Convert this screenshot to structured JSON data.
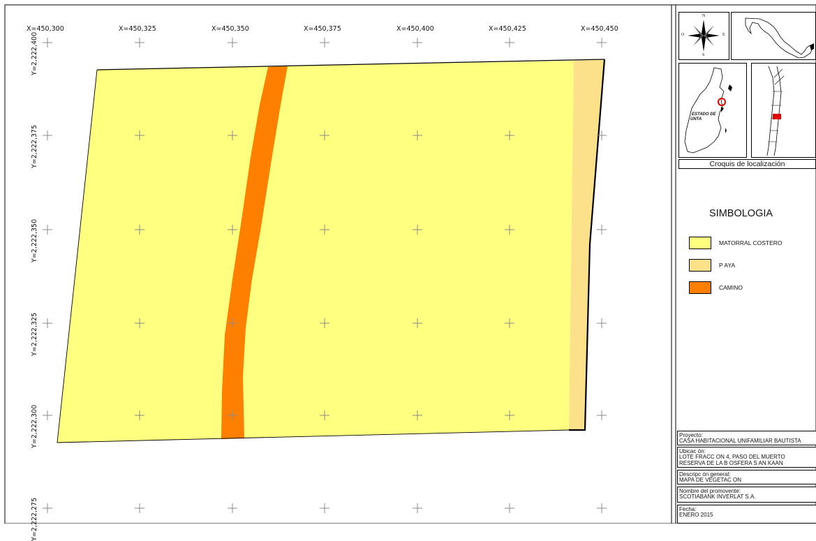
{
  "map": {
    "x_ticks": [
      "X=450,300",
      "X=450,325",
      "X=450,350",
      "X=450,375",
      "X=450,400",
      "X=450,425",
      "X=450,450"
    ],
    "y_ticks": [
      "Y=2,222,400",
      "Y=2,222,375",
      "Y=2,222,350",
      "Y=2,222,325",
      "Y=2,222,300",
      "Y=2,222,275"
    ],
    "colors": {
      "matorral": "#ffff80",
      "playa": "#fde08a",
      "camino": "#ff8000"
    }
  },
  "compass": {
    "north": "N",
    "south": "S",
    "east": "E",
    "west": "O"
  },
  "croquis": {
    "caption": "Croquis de localización",
    "inset_label_1": "ESTADO DE",
    "inset_label_2": "UNTA"
  },
  "legend": {
    "title": "SIMBOLOGIA",
    "items": [
      {
        "label": "MATORRAL COSTERO",
        "color": "#ffff80"
      },
      {
        "label": "P AYA",
        "color": "#fde08a"
      },
      {
        "label": "CAMINO",
        "color": "#ff8000"
      }
    ]
  },
  "info": {
    "proyecto_label": "Proyecto:",
    "proyecto_value": "CASA HABITACIONAL UNIFAMILIAR BAUTISTA",
    "ubicacion_label": "Ubicac ón:",
    "ubicacion_line1": "LOTE FRACC ON 4, PASO DEL MUERTO",
    "ubicacion_line2": "RESERVA DE LA B OSFERA S AN KAAN",
    "descripcion_label": "Descripc ón general:",
    "descripcion_value": "MAPA DE VEGETAC ON",
    "promovente_label": "Nombre del promovente:",
    "promovente_value": "SCOTIABANK INVERLAT S.A.",
    "fecha_label": "Fecha:",
    "fecha_value": "ENERO 2015"
  }
}
